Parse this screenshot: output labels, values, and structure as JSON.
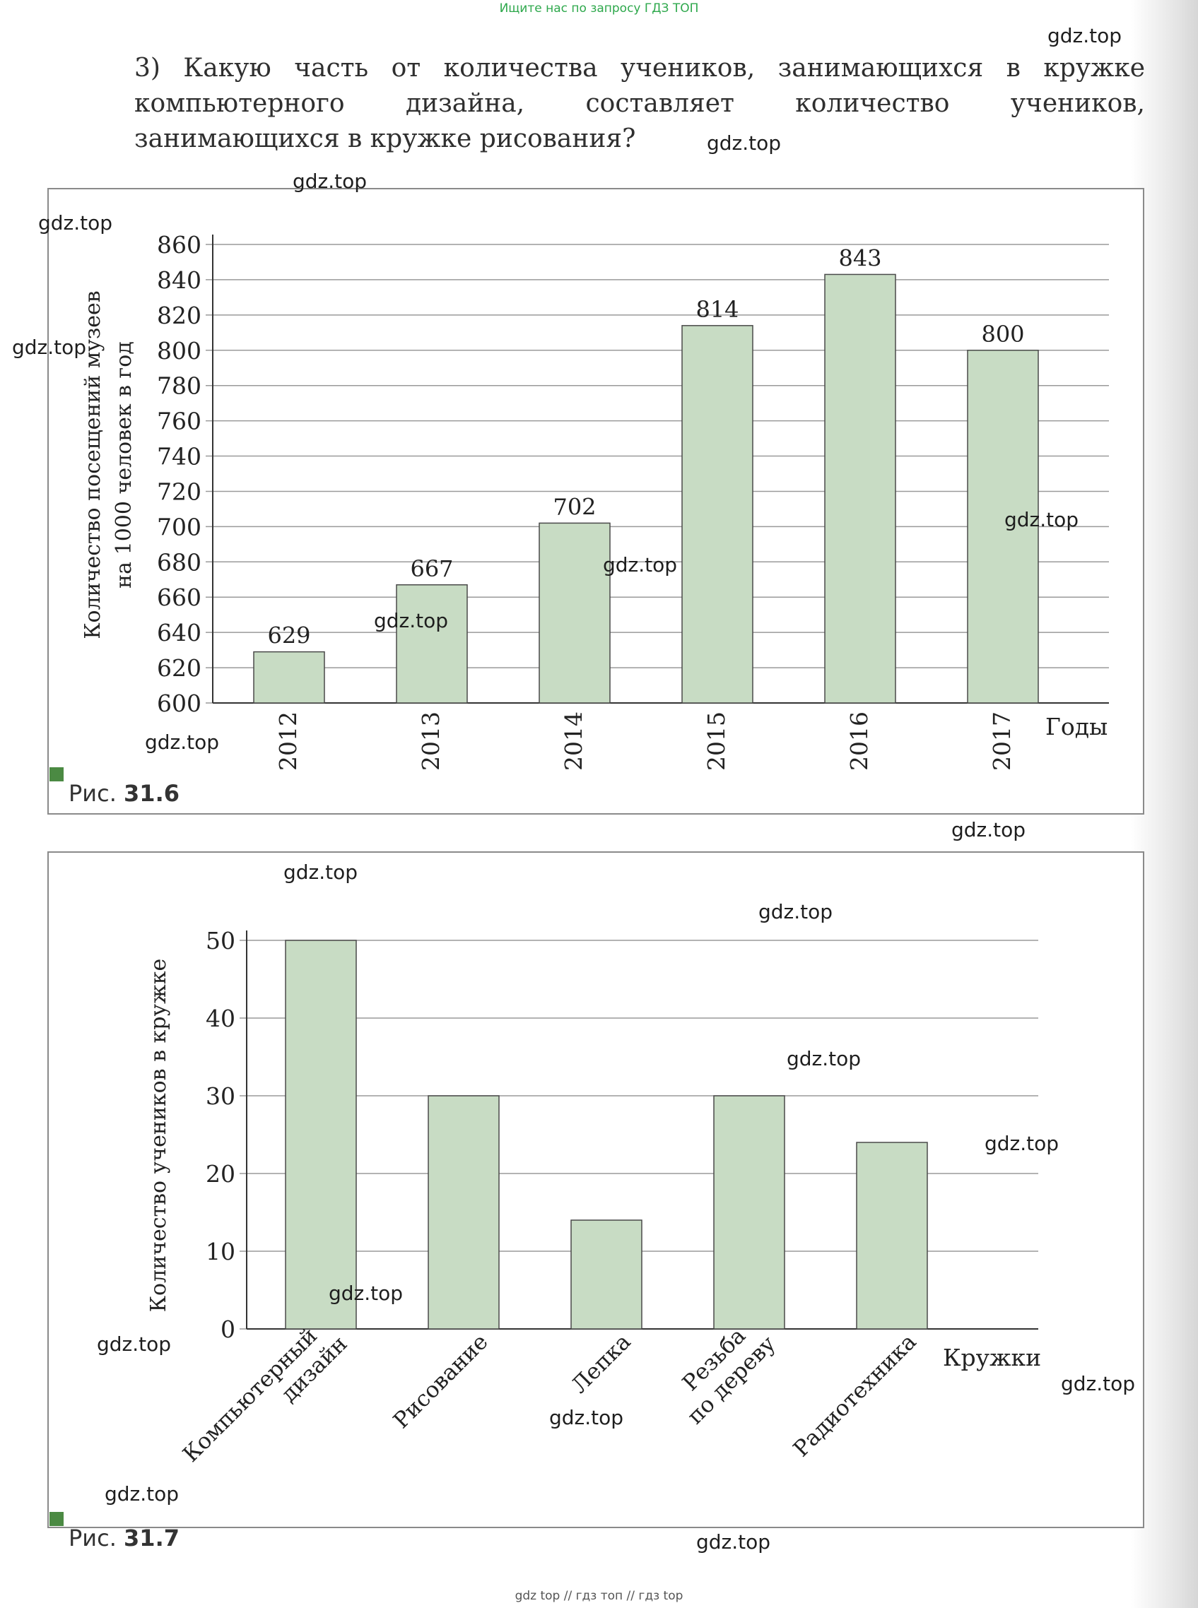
{
  "top_banner": "Ищите нас по запросу ГДЗ ТОП",
  "bottom_banner": "gdz top  //  гдз топ  //  гдз top",
  "question": "3) Какую часть от количества учеников, занимающихся в кружке компьютерного дизайна, составляет количество учеников, занимающихся в кружке рисования?",
  "watermark_text": "gdz.top",
  "figure1_caption": {
    "prefix": "Рис. ",
    "number": "31.6"
  },
  "figure2_caption": {
    "prefix": "Рис. ",
    "number": "31.7"
  },
  "colors": {
    "bar_fill": "#c8dcc4",
    "bar_stroke": "#4a4a4a",
    "grid": "#9a9a9a",
    "marker": "#4b8a43",
    "banner": "#2ea84c"
  },
  "chart_data": [
    {
      "type": "bar",
      "ylabel": "Количество посещений музеев на 1000 человек в год",
      "xlabel": "Годы",
      "categories": [
        "2012",
        "2013",
        "2014",
        "2015",
        "2016",
        "2017"
      ],
      "values": [
        629,
        667,
        702,
        814,
        843,
        800
      ],
      "data_labels": [
        "629",
        "667",
        "702",
        "814",
        "843",
        "800"
      ],
      "ylim": [
        600,
        860
      ],
      "yticks": [
        600,
        620,
        640,
        660,
        680,
        700,
        720,
        740,
        760,
        780,
        800,
        820,
        840,
        860
      ],
      "grid": true
    },
    {
      "type": "bar",
      "ylabel": "Количество учеников в кружке",
      "xlabel": "Кружки",
      "categories": [
        [
          "Компьютерный",
          "дизайн"
        ],
        [
          "Рисование"
        ],
        [
          "Лепка"
        ],
        [
          "Резьба",
          "по дереву"
        ],
        [
          "Радиотехника"
        ]
      ],
      "values": [
        50,
        30,
        14,
        30,
        24
      ],
      "ylim": [
        0,
        50
      ],
      "yticks": [
        0,
        10,
        20,
        30,
        40,
        50
      ],
      "grid": true
    }
  ]
}
